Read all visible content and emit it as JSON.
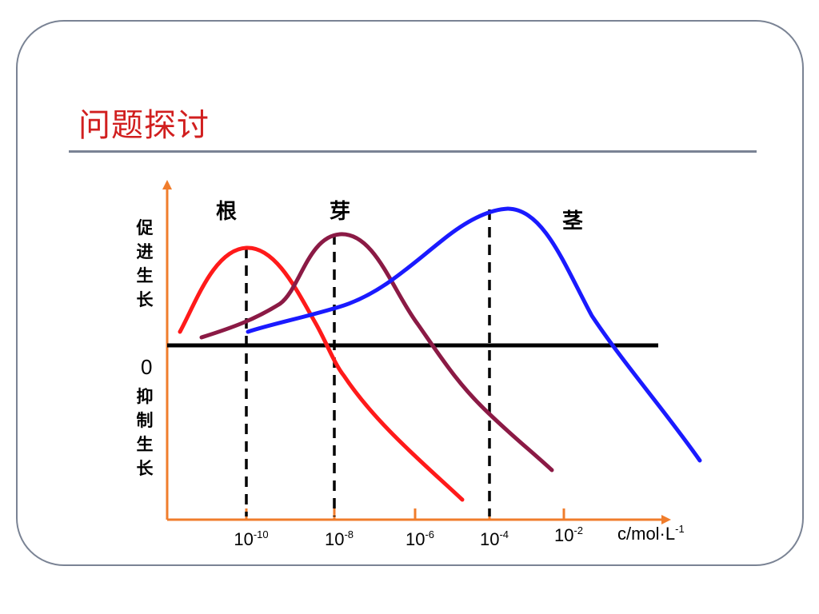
{
  "slide": {
    "title": "问题探讨"
  },
  "colors": {
    "title": "#d11f1f",
    "frame": "#7a8394",
    "axis": "#f07d2c",
    "baseline": "#000000",
    "root_curve": "#ff1a1a",
    "bud_curve": "#8b1a45",
    "stem_curve": "#1a1aff"
  },
  "chart_data": {
    "type": "line",
    "y_label_upper": [
      "促",
      "进",
      "生",
      "长"
    ],
    "y_label_lower": [
      "抑",
      "制",
      "生",
      "长"
    ],
    "zero_label": "0",
    "x_unit": {
      "base": "c/mol·L",
      "exp": "-1"
    },
    "x_scale": "log10",
    "x_ticks": [
      {
        "base": "10",
        "exp": "-10"
      },
      {
        "base": "10",
        "exp": "-8"
      },
      {
        "base": "10",
        "exp": "-6"
      },
      {
        "base": "10",
        "exp": "-4"
      },
      {
        "base": "10",
        "exp": "-2"
      }
    ],
    "series": [
      {
        "name": "根",
        "optimum_exp": -10
      },
      {
        "name": "芽",
        "optimum_exp": -8
      },
      {
        "name": "茎",
        "optimum_exp": -4
      }
    ]
  }
}
